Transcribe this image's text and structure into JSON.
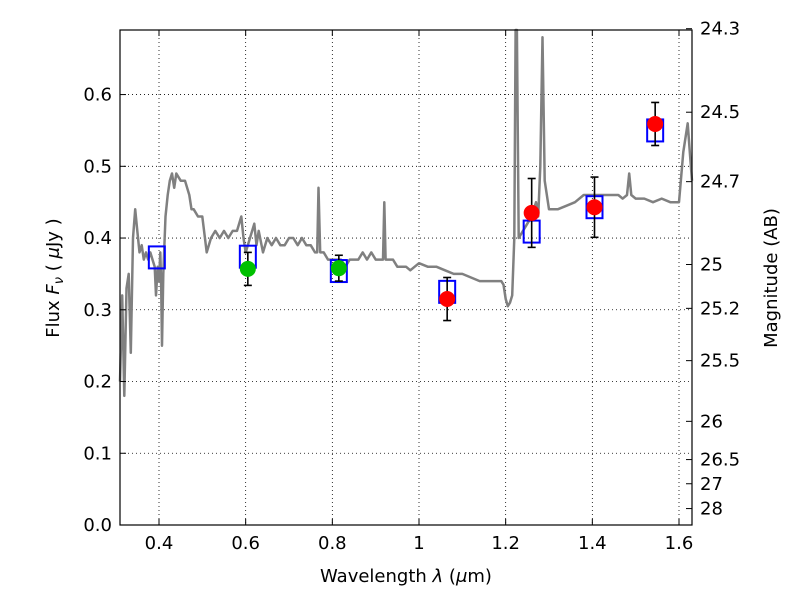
{
  "chart_data": {
    "type": "scatter",
    "xlabel": "Wavelength  λ (μm)",
    "xlabel_parts": {
      "main": "Wavelength  ",
      "lambda": "λ",
      "open": " (",
      "mu": "μ",
      "unit": "m)"
    },
    "ylabel": "Flux  Fν  ( μJy )",
    "ylabel_parts": {
      "main": "Flux  ",
      "F": "F",
      "nu": "ν",
      "open": "  ( ",
      "mu": "μ",
      "unit": "Jy )"
    },
    "y2label": "Magnitude (AB)",
    "xlim": [
      0.31,
      1.63
    ],
    "ylim": [
      0.0,
      0.69
    ],
    "grid": true,
    "x_ticks": [
      0.4,
      0.6,
      0.8,
      1.0,
      1.2,
      1.4,
      1.6
    ],
    "x_tick_labels": [
      "0.4",
      "0.6",
      "0.8",
      "1",
      "1.2",
      "1.4",
      "1.6"
    ],
    "y_ticks": [
      0.0,
      0.1,
      0.2,
      0.3,
      0.4,
      0.5,
      0.6
    ],
    "y_tick_labels": [
      "0.0",
      "0.1",
      "0.2",
      "0.3",
      "0.4",
      "0.5",
      "0.6"
    ],
    "y2_ticks": [
      {
        "label": "24.3",
        "flux": 0.6918
      },
      {
        "label": "24.5",
        "flux": 0.5754
      },
      {
        "label": "24.7",
        "flux": 0.4786
      },
      {
        "label": "25",
        "flux": 0.3631
      },
      {
        "label": "25.2",
        "flux": 0.302
      },
      {
        "label": "25.5",
        "flux": 0.2291
      },
      {
        "label": "26",
        "flux": 0.1445
      },
      {
        "label": "26.5",
        "flux": 0.0912
      },
      {
        "label": "27",
        "flux": 0.0575
      },
      {
        "label": "28",
        "flux": 0.0229
      }
    ],
    "colors": {
      "green": "#00c000",
      "red": "#ff0000",
      "model": "#0000ff",
      "spectrum": "#808080"
    },
    "photometry": [
      {
        "x": 0.605,
        "y": 0.357,
        "err": 0.023,
        "color": "green"
      },
      {
        "x": 0.815,
        "y": 0.358,
        "err": 0.018,
        "color": "green"
      },
      {
        "x": 1.065,
        "y": 0.315,
        "err": 0.03,
        "color": "red"
      },
      {
        "x": 1.26,
        "y": 0.435,
        "err": 0.048,
        "color": "red"
      },
      {
        "x": 1.405,
        "y": 0.443,
        "err": 0.042,
        "color": "red"
      },
      {
        "x": 1.545,
        "y": 0.559,
        "err": 0.03,
        "color": "red"
      }
    ],
    "model_photometry": [
      {
        "x": 0.395,
        "y": 0.373
      },
      {
        "x": 0.605,
        "y": 0.374
      },
      {
        "x": 0.815,
        "y": 0.354
      },
      {
        "x": 1.065,
        "y": 0.325
      },
      {
        "x": 1.26,
        "y": 0.409
      },
      {
        "x": 1.405,
        "y": 0.443
      },
      {
        "x": 1.545,
        "y": 0.55
      }
    ],
    "model_spectrum": [
      [
        0.31,
        0.2
      ],
      [
        0.315,
        0.32
      ],
      [
        0.32,
        0.18
      ],
      [
        0.325,
        0.33
      ],
      [
        0.33,
        0.35
      ],
      [
        0.335,
        0.24
      ],
      [
        0.34,
        0.4
      ],
      [
        0.345,
        0.44
      ],
      [
        0.35,
        0.41
      ],
      [
        0.355,
        0.38
      ],
      [
        0.36,
        0.39
      ],
      [
        0.365,
        0.37
      ],
      [
        0.37,
        0.38
      ],
      [
        0.375,
        0.37
      ],
      [
        0.38,
        0.38
      ],
      [
        0.385,
        0.37
      ],
      [
        0.39,
        0.36
      ],
      [
        0.393,
        0.32
      ],
      [
        0.397,
        0.36
      ],
      [
        0.4,
        0.34
      ],
      [
        0.403,
        0.38
      ],
      [
        0.405,
        0.33
      ],
      [
        0.407,
        0.25
      ],
      [
        0.41,
        0.35
      ],
      [
        0.415,
        0.43
      ],
      [
        0.42,
        0.46
      ],
      [
        0.425,
        0.48
      ],
      [
        0.43,
        0.49
      ],
      [
        0.435,
        0.47
      ],
      [
        0.44,
        0.49
      ],
      [
        0.45,
        0.48
      ],
      [
        0.46,
        0.48
      ],
      [
        0.47,
        0.46
      ],
      [
        0.475,
        0.44
      ],
      [
        0.48,
        0.44
      ],
      [
        0.49,
        0.43
      ],
      [
        0.5,
        0.43
      ],
      [
        0.51,
        0.38
      ],
      [
        0.52,
        0.4
      ],
      [
        0.53,
        0.41
      ],
      [
        0.54,
        0.4
      ],
      [
        0.55,
        0.41
      ],
      [
        0.56,
        0.4
      ],
      [
        0.57,
        0.41
      ],
      [
        0.58,
        0.41
      ],
      [
        0.59,
        0.43
      ],
      [
        0.595,
        0.4
      ],
      [
        0.6,
        0.38
      ],
      [
        0.61,
        0.4
      ],
      [
        0.62,
        0.42
      ],
      [
        0.625,
        0.39
      ],
      [
        0.63,
        0.41
      ],
      [
        0.64,
        0.38
      ],
      [
        0.65,
        0.4
      ],
      [
        0.66,
        0.39
      ],
      [
        0.67,
        0.4
      ],
      [
        0.68,
        0.39
      ],
      [
        0.69,
        0.39
      ],
      [
        0.7,
        0.4
      ],
      [
        0.71,
        0.4
      ],
      [
        0.72,
        0.39
      ],
      [
        0.73,
        0.4
      ],
      [
        0.74,
        0.39
      ],
      [
        0.75,
        0.39
      ],
      [
        0.76,
        0.38
      ],
      [
        0.765,
        0.38
      ],
      [
        0.768,
        0.47
      ],
      [
        0.772,
        0.38
      ],
      [
        0.78,
        0.38
      ],
      [
        0.79,
        0.37
      ],
      [
        0.8,
        0.37
      ],
      [
        0.81,
        0.37
      ],
      [
        0.82,
        0.37
      ],
      [
        0.83,
        0.36
      ],
      [
        0.84,
        0.37
      ],
      [
        0.85,
        0.37
      ],
      [
        0.86,
        0.37
      ],
      [
        0.87,
        0.38
      ],
      [
        0.88,
        0.37
      ],
      [
        0.89,
        0.38
      ],
      [
        0.9,
        0.37
      ],
      [
        0.91,
        0.37
      ],
      [
        0.917,
        0.37
      ],
      [
        0.92,
        0.45
      ],
      [
        0.923,
        0.37
      ],
      [
        0.93,
        0.37
      ],
      [
        0.94,
        0.37
      ],
      [
        0.95,
        0.36
      ],
      [
        0.96,
        0.36
      ],
      [
        0.97,
        0.36
      ],
      [
        0.98,
        0.355
      ],
      [
        0.99,
        0.36
      ],
      [
        1.0,
        0.365
      ],
      [
        1.02,
        0.36
      ],
      [
        1.04,
        0.36
      ],
      [
        1.06,
        0.355
      ],
      [
        1.08,
        0.35
      ],
      [
        1.1,
        0.35
      ],
      [
        1.12,
        0.345
      ],
      [
        1.14,
        0.34
      ],
      [
        1.16,
        0.34
      ],
      [
        1.18,
        0.34
      ],
      [
        1.19,
        0.34
      ],
      [
        1.195,
        0.335
      ],
      [
        1.2,
        0.315
      ],
      [
        1.205,
        0.305
      ],
      [
        1.21,
        0.31
      ],
      [
        1.215,
        0.32
      ],
      [
        1.22,
        0.4
      ],
      [
        1.223,
        0.69
      ],
      [
        1.226,
        0.69
      ],
      [
        1.23,
        0.4
      ],
      [
        1.24,
        0.41
      ],
      [
        1.25,
        0.42
      ],
      [
        1.26,
        0.43
      ],
      [
        1.27,
        0.45
      ],
      [
        1.275,
        0.43
      ],
      [
        1.28,
        0.5
      ],
      [
        1.285,
        0.68
      ],
      [
        1.29,
        0.48
      ],
      [
        1.3,
        0.44
      ],
      [
        1.32,
        0.44
      ],
      [
        1.34,
        0.445
      ],
      [
        1.36,
        0.45
      ],
      [
        1.38,
        0.46
      ],
      [
        1.4,
        0.46
      ],
      [
        1.42,
        0.46
      ],
      [
        1.44,
        0.46
      ],
      [
        1.46,
        0.46
      ],
      [
        1.47,
        0.455
      ],
      [
        1.48,
        0.46
      ],
      [
        1.485,
        0.49
      ],
      [
        1.49,
        0.46
      ],
      [
        1.5,
        0.455
      ],
      [
        1.52,
        0.455
      ],
      [
        1.54,
        0.45
      ],
      [
        1.56,
        0.455
      ],
      [
        1.58,
        0.45
      ],
      [
        1.6,
        0.45
      ],
      [
        1.61,
        0.52
      ],
      [
        1.62,
        0.56
      ],
      [
        1.625,
        0.52
      ],
      [
        1.63,
        0.48
      ]
    ]
  }
}
